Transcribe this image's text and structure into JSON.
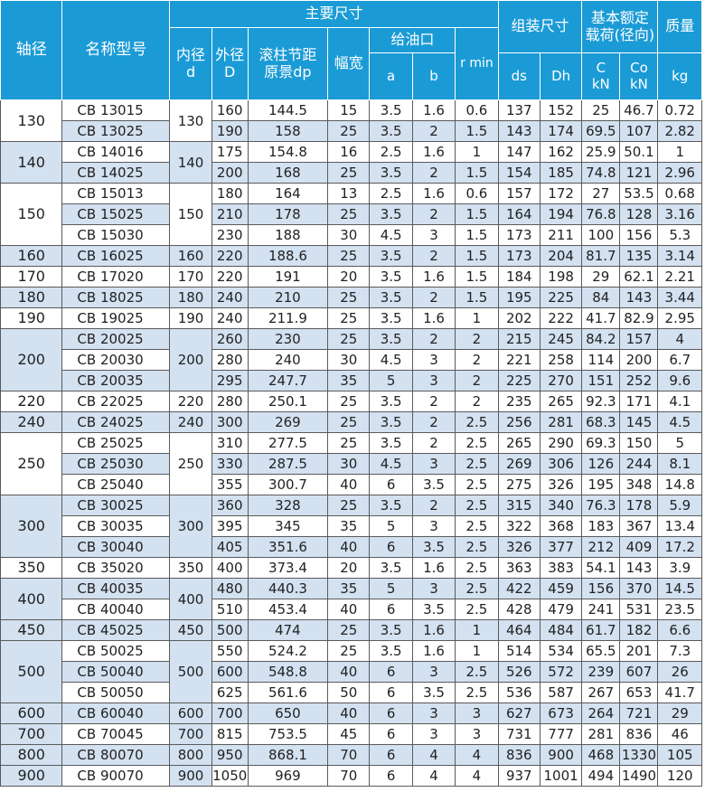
{
  "header": {
    "shaft": "轴径",
    "model": "名称型号",
    "main_dims": "主要尺寸",
    "inner_l1": "内径",
    "inner_l2": "d",
    "outer_l1": "外径",
    "outer_l2": "D",
    "pitch_l1": "滚柱节距",
    "pitch_l2": "原景dp",
    "width": "幅宽",
    "oil": "给油口",
    "a": "a",
    "b": "b",
    "rmin": "r min",
    "assembly": "组装尺寸",
    "ds": "ds",
    "dh": "Dh",
    "load_l1": "基本额定",
    "load_l2": "载荷(径向)",
    "c_l1": "C",
    "c_l2": "kN",
    "c0_l1": "Co",
    "c0_l2": "kN",
    "mass": "质量",
    "kg": "kg"
  },
  "colors": {
    "header_bg": "#1b9bd6",
    "band": "#d3e1f1",
    "border": "#5a5a5a"
  },
  "rows": [
    {
      "shaft": "130",
      "model": "CB 13015",
      "d": "130",
      "D": "160",
      "dp": "144.5",
      "w": "15",
      "a": "3.5",
      "b": "1.6",
      "r": "0.6",
      "ds": "137",
      "dh": "152",
      "c": "25",
      "c0": "46.7",
      "kg": "0.72"
    },
    {
      "shaft": "",
      "model": "CB 13025",
      "d": "",
      "D": "190",
      "dp": "158",
      "w": "25",
      "a": "3.5",
      "b": "2",
      "r": "1.5",
      "ds": "143",
      "dh": "174",
      "c": "69.5",
      "c0": "107",
      "kg": "2.82"
    },
    {
      "shaft": "140",
      "model": "CB 14016",
      "d": "140",
      "D": "175",
      "dp": "154.8",
      "w": "16",
      "a": "2.5",
      "b": "1.6",
      "r": "1",
      "ds": "147",
      "dh": "162",
      "c": "25.9",
      "c0": "50.1",
      "kg": "1"
    },
    {
      "shaft": "",
      "model": "CB 14025",
      "d": "",
      "D": "200",
      "dp": "168",
      "w": "25",
      "a": "3.5",
      "b": "2",
      "r": "1.5",
      "ds": "154",
      "dh": "185",
      "c": "74.8",
      "c0": "121",
      "kg": "2.96"
    },
    {
      "shaft": "150",
      "model": "CB 15013",
      "d": "150",
      "D": "180",
      "dp": "164",
      "w": "13",
      "a": "2.5",
      "b": "1.6",
      "r": "0.6",
      "ds": "157",
      "dh": "172",
      "c": "27",
      "c0": "53.5",
      "kg": "0.68"
    },
    {
      "shaft": "",
      "model": "CB 15025",
      "d": "",
      "D": "210",
      "dp": "178",
      "w": "25",
      "a": "3.5",
      "b": "2",
      "r": "1.5",
      "ds": "164",
      "dh": "194",
      "c": "76.8",
      "c0": "128",
      "kg": "3.16"
    },
    {
      "shaft": "",
      "model": "CB 15030",
      "d": "",
      "D": "230",
      "dp": "188",
      "w": "30",
      "a": "4.5",
      "b": "3",
      "r": "1.5",
      "ds": "173",
      "dh": "211",
      "c": "100",
      "c0": "156",
      "kg": "5.3"
    },
    {
      "shaft": "160",
      "model": "CB 16025",
      "d": "160",
      "D": "220",
      "dp": "188.6",
      "w": "25",
      "a": "3.5",
      "b": "2",
      "r": "1.5",
      "ds": "173",
      "dh": "204",
      "c": "81.7",
      "c0": "135",
      "kg": "3.14"
    },
    {
      "shaft": "170",
      "model": "CB 17020",
      "d": "170",
      "D": "220",
      "dp": "191",
      "w": "20",
      "a": "3.5",
      "b": "1.6",
      "r": "1.5",
      "ds": "184",
      "dh": "198",
      "c": "29",
      "c0": "62.1",
      "kg": "2.21"
    },
    {
      "shaft": "180",
      "model": "CB 18025",
      "d": "180",
      "D": "240",
      "dp": "210",
      "w": "25",
      "a": "3.5",
      "b": "2",
      "r": "1.5",
      "ds": "195",
      "dh": "225",
      "c": "84",
      "c0": "143",
      "kg": "3.44"
    },
    {
      "shaft": "190",
      "model": "CB 19025",
      "d": "190",
      "D": "240",
      "dp": "211.9",
      "w": "25",
      "a": "3.5",
      "b": "1.6",
      "r": "1",
      "ds": "202",
      "dh": "222",
      "c": "41.7",
      "c0": "82.9",
      "kg": "2.95"
    },
    {
      "shaft": "200",
      "model": "CB 20025",
      "d": "200",
      "D": "260",
      "dp": "230",
      "w": "25",
      "a": "3.5",
      "b": "2",
      "r": "2",
      "ds": "215",
      "dh": "245",
      "c": "84.2",
      "c0": "157",
      "kg": "4"
    },
    {
      "shaft": "",
      "model": "CB 20030",
      "d": "",
      "D": "280",
      "dp": "240",
      "w": "30",
      "a": "4.5",
      "b": "3",
      "r": "2",
      "ds": "221",
      "dh": "258",
      "c": "114",
      "c0": "200",
      "kg": "6.7"
    },
    {
      "shaft": "",
      "model": "CB 20035",
      "d": "",
      "D": "295",
      "dp": "247.7",
      "w": "35",
      "a": "5",
      "b": "3",
      "r": "2",
      "ds": "225",
      "dh": "270",
      "c": "151",
      "c0": "252",
      "kg": "9.6"
    },
    {
      "shaft": "220",
      "model": "CB 22025",
      "d": "220",
      "D": "280",
      "dp": "250.1",
      "w": "25",
      "a": "3.5",
      "b": "2",
      "r": "2",
      "ds": "235",
      "dh": "265",
      "c": "92.3",
      "c0": "171",
      "kg": "4.1"
    },
    {
      "shaft": "240",
      "model": "CB 24025",
      "d": "240",
      "D": "300",
      "dp": "269",
      "w": "25",
      "a": "3.5",
      "b": "2",
      "r": "2.5",
      "ds": "256",
      "dh": "281",
      "c": "68.3",
      "c0": "145",
      "kg": "4.5"
    },
    {
      "shaft": "250",
      "model": "CB 25025",
      "d": "250",
      "D": "310",
      "dp": "277.5",
      "w": "25",
      "a": "3.5",
      "b": "2",
      "r": "2.5",
      "ds": "265",
      "dh": "290",
      "c": "69.3",
      "c0": "150",
      "kg": "5"
    },
    {
      "shaft": "",
      "model": "CB 25030",
      "d": "",
      "D": "330",
      "dp": "287.5",
      "w": "30",
      "a": "4.5",
      "b": "3",
      "r": "2.5",
      "ds": "269",
      "dh": "306",
      "c": "126",
      "c0": "244",
      "kg": "8.1"
    },
    {
      "shaft": "",
      "model": "CB 25040",
      "d": "",
      "D": "355",
      "dp": "300.7",
      "w": "40",
      "a": "6",
      "b": "3.5",
      "r": "2.5",
      "ds": "275",
      "dh": "326",
      "c": "195",
      "c0": "348",
      "kg": "14.8"
    },
    {
      "shaft": "300",
      "model": "CB 30025",
      "d": "300",
      "D": "360",
      "dp": "328",
      "w": "25",
      "a": "3.5",
      "b": "2",
      "r": "2.5",
      "ds": "315",
      "dh": "340",
      "c": "76.3",
      "c0": "178",
      "kg": "5.9"
    },
    {
      "shaft": "",
      "model": "CB 30035",
      "d": "",
      "D": "395",
      "dp": "345",
      "w": "35",
      "a": "5",
      "b": "3",
      "r": "2.5",
      "ds": "322",
      "dh": "368",
      "c": "183",
      "c0": "367",
      "kg": "13.4"
    },
    {
      "shaft": "",
      "model": "CB 30040",
      "d": "",
      "D": "405",
      "dp": "351.6",
      "w": "40",
      "a": "6",
      "b": "3.5",
      "r": "2.5",
      "ds": "326",
      "dh": "377",
      "c": "212",
      "c0": "409",
      "kg": "17.2"
    },
    {
      "shaft": "350",
      "model": "CB 35020",
      "d": "350",
      "D": "400",
      "dp": "373.4",
      "w": "20",
      "a": "3.5",
      "b": "1.6",
      "r": "2.5",
      "ds": "363",
      "dh": "383",
      "c": "54.1",
      "c0": "143",
      "kg": "3.9"
    },
    {
      "shaft": "400",
      "model": "CB 40035",
      "d": "400",
      "D": "480",
      "dp": "440.3",
      "w": "35",
      "a": "5",
      "b": "3",
      "r": "2.5",
      "ds": "422",
      "dh": "459",
      "c": "156",
      "c0": "370",
      "kg": "14.5"
    },
    {
      "shaft": "",
      "model": "CB 40040",
      "d": "",
      "D": "510",
      "dp": "453.4",
      "w": "40",
      "a": "6",
      "b": "3.5",
      "r": "2.5",
      "ds": "428",
      "dh": "479",
      "c": "241",
      "c0": "531",
      "kg": "23.5"
    },
    {
      "shaft": "450",
      "model": "CB 45025",
      "d": "450",
      "D": "500",
      "dp": "474",
      "w": "25",
      "a": "3.5",
      "b": "1.6",
      "r": "1",
      "ds": "464",
      "dh": "484",
      "c": "61.7",
      "c0": "182",
      "kg": "6.6"
    },
    {
      "shaft": "500",
      "model": "CB 50025",
      "d": "500",
      "D": "550",
      "dp": "524.2",
      "w": "25",
      "a": "3.5",
      "b": "1.6",
      "r": "1",
      "ds": "514",
      "dh": "534",
      "c": "65.5",
      "c0": "201",
      "kg": "7.3"
    },
    {
      "shaft": "",
      "model": "CB 50040",
      "d": "",
      "D": "600",
      "dp": "548.8",
      "w": "40",
      "a": "6",
      "b": "3",
      "r": "2.5",
      "ds": "526",
      "dh": "572",
      "c": "239",
      "c0": "607",
      "kg": "26"
    },
    {
      "shaft": "",
      "model": "CB 50050",
      "d": "",
      "D": "625",
      "dp": "561.6",
      "w": "50",
      "a": "6",
      "b": "3.5",
      "r": "2.5",
      "ds": "536",
      "dh": "587",
      "c": "267",
      "c0": "653",
      "kg": "41.7"
    },
    {
      "shaft": "600",
      "model": "CB 60040",
      "d": "600",
      "D": "700",
      "dp": "650",
      "w": "40",
      "a": "6",
      "b": "3",
      "r": "3",
      "ds": "627",
      "dh": "673",
      "c": "264",
      "c0": "721",
      "kg": "29"
    },
    {
      "shaft": "700",
      "model": "CB 70045",
      "d": "700",
      "D": "815",
      "dp": "753.5",
      "w": "45",
      "a": "6",
      "b": "3",
      "r": "3",
      "ds": "731",
      "dh": "777",
      "c": "281",
      "c0": "836",
      "kg": "46"
    },
    {
      "shaft": "800",
      "model": "CB 80070",
      "d": "800",
      "D": "950",
      "dp": "868.1",
      "w": "70",
      "a": "6",
      "b": "4",
      "r": "4",
      "ds": "836",
      "dh": "900",
      "c": "468",
      "c0": "1330",
      "kg": "105"
    },
    {
      "shaft": "900",
      "model": "CB 90070",
      "d": "900",
      "D": "1050",
      "dp": "969",
      "w": "70",
      "a": "6",
      "b": "4",
      "r": "4",
      "ds": "937",
      "dh": "1001",
      "c": "494",
      "c0": "1490",
      "kg": "120"
    }
  ]
}
